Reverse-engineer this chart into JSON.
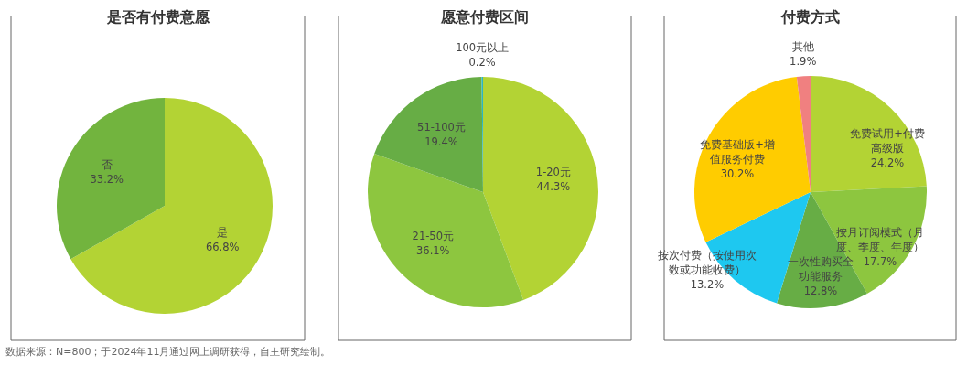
{
  "chart_data": [
    {
      "type": "pie",
      "title": "是否有付费意愿",
      "categories": [
        "是",
        "否"
      ],
      "values": [
        66.8,
        33.2
      ],
      "value_labels": [
        "66.8%",
        "33.2%"
      ],
      "colors": [
        "#b3d334",
        "#72b43e"
      ],
      "annotations": [
        "数据来源：N=800；于2024年11月通过网上调研获得，自主研究绘制。"
      ]
    },
    {
      "type": "pie",
      "title": "愿意付费区间",
      "categories": [
        "1-20元",
        "21-50元",
        "51-100元",
        "100元以上"
      ],
      "values": [
        44.3,
        36.1,
        19.4,
        0.2
      ],
      "value_labels": [
        "44.3%",
        "36.1%",
        "19.4%",
        "0.2%"
      ],
      "colors": [
        "#b3d334",
        "#8dc63f",
        "#67ad45",
        "#2bb5c4"
      ]
    },
    {
      "type": "pie",
      "title": "付费方式",
      "categories": [
        "免费试用+付费高级版",
        "按月订阅模式（月度、季度、年度）",
        "一次性购买全功能服务",
        "按次付费（按使用次数或功能收费）",
        "免费基础版+增值服务付费",
        "其他"
      ],
      "values": [
        24.2,
        17.7,
        12.8,
        13.2,
        30.2,
        1.9
      ],
      "value_labels": [
        "24.2%",
        "17.7%",
        "12.8%",
        "13.2%",
        "30.2%",
        "1.9%"
      ],
      "colors": [
        "#b3d334",
        "#8dc63f",
        "#67ad45",
        "#1ec8f0",
        "#ffcc00",
        "#f08080"
      ]
    }
  ]
}
